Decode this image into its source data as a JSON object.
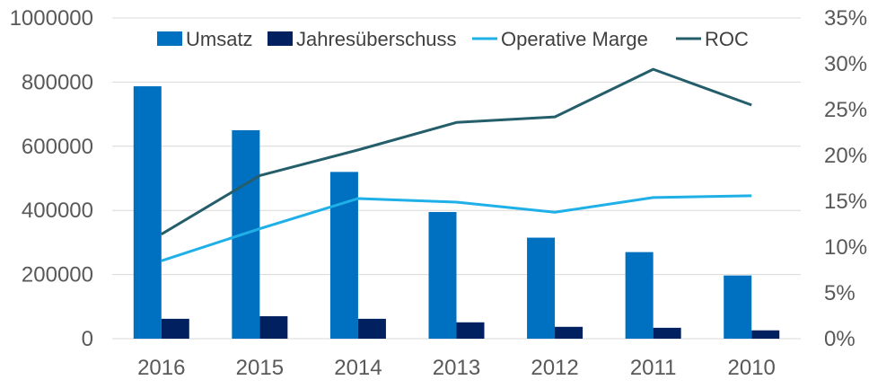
{
  "chart_data": {
    "type": "bar+line",
    "title": "",
    "categories": [
      "2016",
      "2015",
      "2014",
      "2013",
      "2012",
      "2011",
      "2010"
    ],
    "bar_series": [
      {
        "name": "Umsatz",
        "color": "#0070c0",
        "values": [
          787000,
          650000,
          520000,
          395000,
          315000,
          270000,
          197000
        ]
      },
      {
        "name": "Jahresüberschuss",
        "color": "#002060",
        "values": [
          62000,
          70000,
          62000,
          51000,
          37000,
          34000,
          26000
        ]
      }
    ],
    "line_series": [
      {
        "name": "Operative Marge",
        "color": "#1fb0e8",
        "axis": "right",
        "values": [
          8.5,
          12,
          15.3,
          14.9,
          13.8,
          15.4,
          15.6
        ]
      },
      {
        "name": "ROC",
        "color": "#255e6b",
        "axis": "right",
        "values": [
          11.4,
          17.8,
          20.6,
          23.6,
          24.2,
          29.4,
          25.5
        ]
      }
    ],
    "y_left": {
      "min": 0,
      "max": 1000000,
      "ticks": [
        "0",
        "200000",
        "400000",
        "600000",
        "800000",
        "1000000"
      ]
    },
    "y_right": {
      "min": 0,
      "max": 35,
      "ticks": [
        "0%",
        "5%",
        "10%",
        "15%",
        "20%",
        "25%",
        "30%",
        "35%"
      ]
    },
    "grid": true,
    "legend": {
      "position": "top-center",
      "labels": [
        "Umsatz",
        "Jahresüberschuss",
        "Operative Marge",
        "ROC"
      ]
    }
  }
}
